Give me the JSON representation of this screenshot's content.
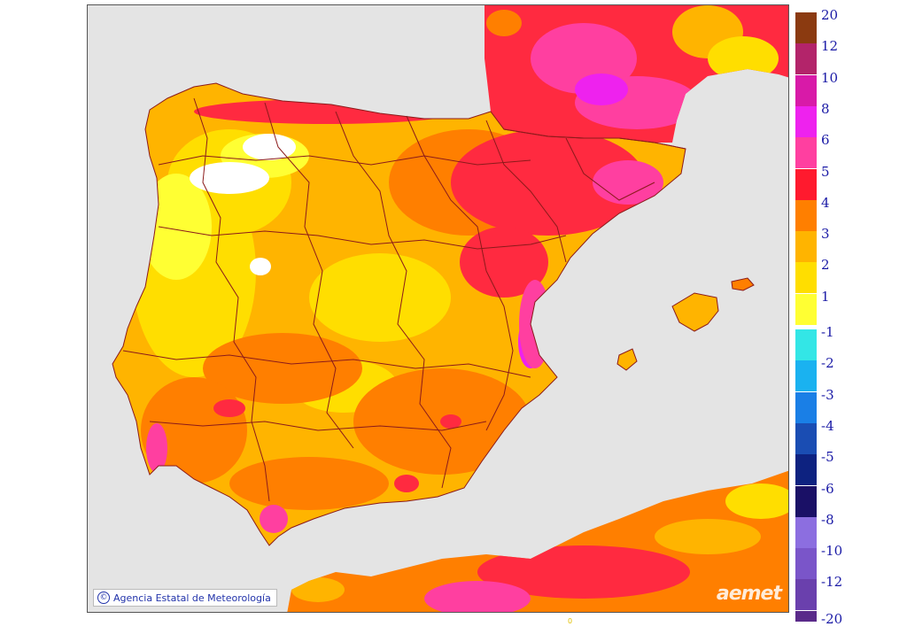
{
  "map": {
    "credit_text": "Agencia Estatal de Meteorología",
    "copyright_symbol": "©",
    "logo_text": "aemet",
    "background_sea_color": "#e4e4e4",
    "border_color": "#8b1a1a"
  },
  "legend": {
    "warm": [
      {
        "label": "20",
        "color": "#8b3a10"
      },
      {
        "label": "12",
        "color": "#b3246a"
      },
      {
        "label": "10",
        "color": "#d81aa8"
      },
      {
        "label": "8",
        "color": "#ee22ee"
      },
      {
        "label": "6",
        "color": "#ff3fa0"
      },
      {
        "label": "5",
        "color": "#ff1a2e"
      },
      {
        "label": "4",
        "color": "#ff7f00"
      },
      {
        "label": "3",
        "color": "#ffb400"
      },
      {
        "label": "2",
        "color": "#ffde00"
      },
      {
        "label": "1",
        "color": "#ffff33"
      }
    ],
    "cold": [
      {
        "label": "-1",
        "color": "#33e6e6"
      },
      {
        "label": "-2",
        "color": "#1ab2f0"
      },
      {
        "label": "-3",
        "color": "#1a7fe6"
      },
      {
        "label": "-4",
        "color": "#1a4db3"
      },
      {
        "label": "-5",
        "color": "#0d2280"
      },
      {
        "label": "-6",
        "color": "#1a1066"
      },
      {
        "label": "-8",
        "color": "#8c6ee0"
      },
      {
        "label": "-10",
        "color": "#7a55c9"
      },
      {
        "label": "-12",
        "color": "#6a40ad"
      }
    ],
    "last_label": "-20",
    "last_color": "#5a2a8a"
  },
  "stray_mark": "0"
}
